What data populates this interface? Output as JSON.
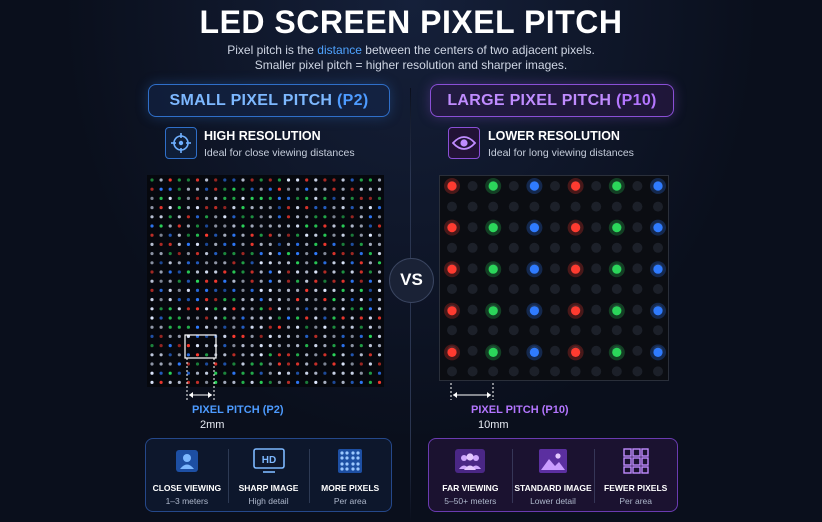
{
  "title": "LED SCREEN PIXEL PITCH",
  "subtitle": {
    "line1_before": "Pixel pitch is the ",
    "line1_highlight": "distance",
    "line1_after": " between the centers of two adjacent pixels.",
    "line2": "Smaller pixel pitch = higher resolution and sharper images."
  },
  "vs_label": "VS",
  "left": {
    "heading": "SMALL PIXEL PITCH",
    "heading_code": "(P2)",
    "feature_title": "HIGH RESOLUTION",
    "feature_desc": "Ideal for close viewing distances",
    "feature_icon": "crosshair-target-icon",
    "pitch_label": "PIXEL PITCH (P2)",
    "pitch_value": "2mm",
    "accent": "#2f6fc9",
    "stats": [
      {
        "icon": "person-icon",
        "label": "CLOSE VIEWING",
        "sub": "1–3 meters"
      },
      {
        "icon": "hd-monitor-icon",
        "label": "SHARP IMAGE",
        "sub": "High detail"
      },
      {
        "icon": "pixel-grid-icon",
        "label": "MORE PIXELS",
        "sub": "Per area"
      }
    ]
  },
  "right": {
    "heading": "LARGE PIXEL PITCH",
    "heading_code": "(P10)",
    "feature_title": "LOWER RESOLUTION",
    "feature_desc": "Ideal for long viewing distances",
    "feature_icon": "eye-icon",
    "pitch_label": "PIXEL PITCH (P10)",
    "pitch_value": "10mm",
    "accent": "#8a4fd6",
    "stats": [
      {
        "icon": "group-icon",
        "label": "FAR VIEWING",
        "sub": "5–50+ meters"
      },
      {
        "icon": "image-icon",
        "label": "STANDARD IMAGE",
        "sub": "Lower detail"
      },
      {
        "icon": "sparse-grid-icon",
        "label": "FEWER PIXELS",
        "sub": "Per area"
      }
    ]
  },
  "led_colors": {
    "red": "#ff3b30",
    "green": "#2bd65a",
    "blue": "#2f7bff"
  }
}
